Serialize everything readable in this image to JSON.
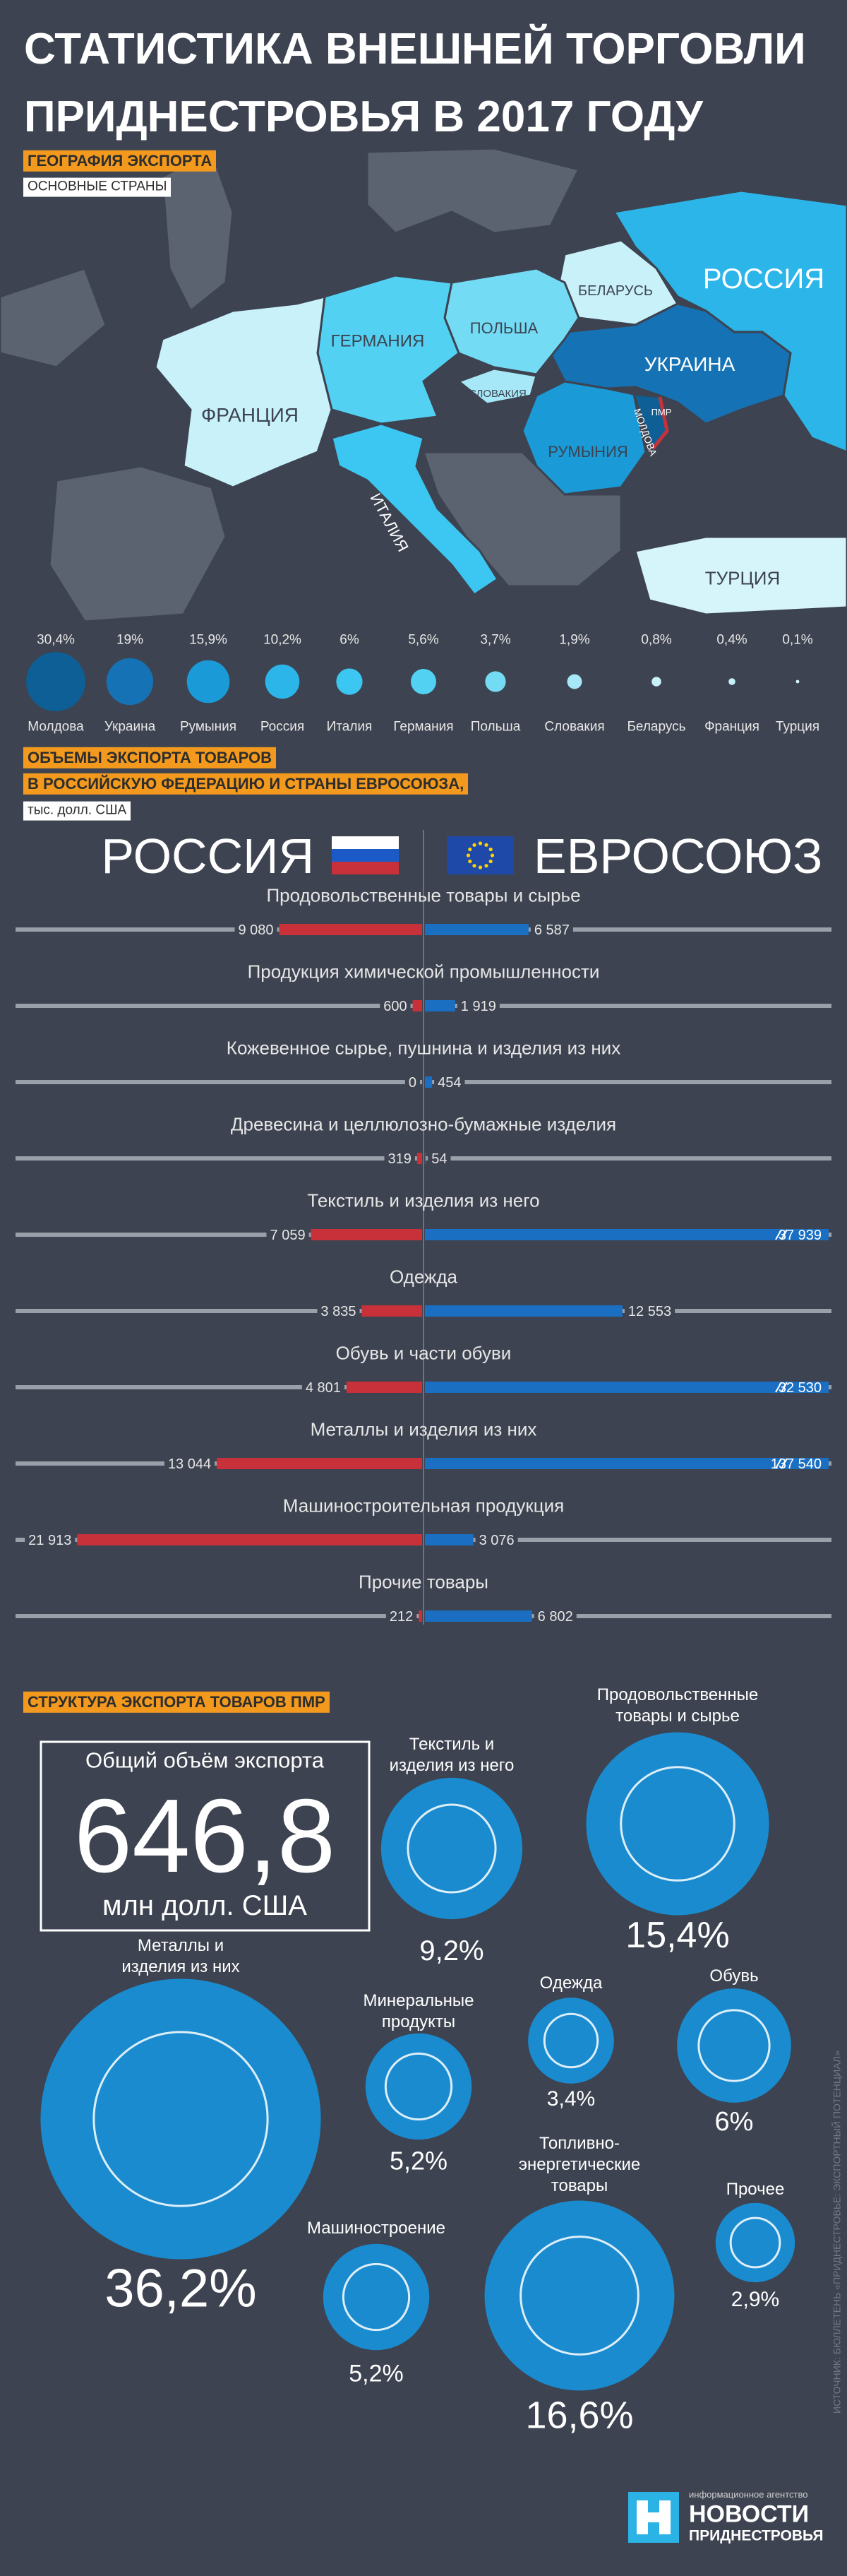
{
  "title": "СТАТИСТИКА ВНЕШНЕЙ ТОРГОВЛИ\nПРИДНЕСТРОВЬЯ В 2017 ГОДУ",
  "map": {
    "labels": [
      "РОССИЯ",
      "БЕЛАРУСЬ",
      "ГЕРМАНИЯ",
      "ПОЛЬША",
      "ФРАНЦИЯ",
      "СЛОВАКИЯ",
      "УКРАИНА",
      "ПМР",
      "МОЛДОВА",
      "РУМЫНИЯ",
      "ИТАЛИЯ",
      "ТУРЦИЯ"
    ]
  },
  "chart_data": [
    {
      "type": "bubble",
      "title": "ГЕОГРАФИЯ ЭКСПОРТА",
      "subtitle": "ОСНОВНЫЕ СТРАНЫ",
      "categories": [
        "Молдова",
        "Украина",
        "Румыния",
        "Россия",
        "Италия",
        "Германия",
        "Польша",
        "Словакия",
        "Беларусь",
        "Франция",
        "Турция"
      ],
      "values": [
        30.4,
        19,
        15.9,
        10.2,
        6,
        5.6,
        3.7,
        1.9,
        0.8,
        0.4,
        0.1
      ],
      "value_labels": [
        "30,4%",
        "19%",
        "15,9%",
        "10,2%",
        "6%",
        "5,6%",
        "3,7%",
        "1,9%",
        "0,8%",
        "0,4%",
        "0,1%"
      ],
      "colors": [
        "#0d5f96",
        "#1572b4",
        "#1a9ad6",
        "#2cb5e8",
        "#3cc6f2",
        "#52d1f2",
        "#74dbf4",
        "#a6e8f7",
        "#c8f1fa",
        "#c8f1fa",
        "#d6f5fb"
      ]
    },
    {
      "type": "butterfly",
      "title": "ОБЪЕМЫ ЭКСПОРТА ТОВАРОВ",
      "subtitle": "В РОССИЙСКУЮ ФЕДЕРАЦИЮ И СТРАНЫ ЕВРОСОЮЗА,",
      "unit": "тыс. долл. США",
      "categories": [
        "Продовольственные товары и сырье",
        "Продукция химической промышленности",
        "Кожевенное сырье, пушнина и изделия из них",
        "Древесина и целлюлозно-бумажные изделия",
        "Текстиль и изделия из него",
        "Одежда",
        "Обувь и части обуви",
        "Металлы и изделия из них",
        "Машиностроительная продукция",
        "Прочие товары"
      ],
      "series": [
        {
          "name": "РОССИЯ",
          "color": "#c8313a",
          "values": [
            9080,
            600,
            0,
            319,
            7059,
            3835,
            4801,
            13044,
            21913,
            212
          ],
          "value_labels": [
            "9 080",
            "600",
            "0",
            "319",
            "7 059",
            "3 835",
            "4 801",
            "13 044",
            "21 913",
            "212"
          ]
        },
        {
          "name": "ЕВРОСОЮЗ",
          "color": "#1b6fc2",
          "values": [
            6587,
            1919,
            454,
            54,
            37939,
            12553,
            32530,
            137540,
            3076,
            6802
          ],
          "value_labels": [
            "6 587",
            "1 919",
            "454",
            "54",
            "37 939",
            "12 553",
            "32 530",
            "137 540",
            "3 076",
            "6 802"
          ]
        }
      ]
    },
    {
      "type": "bubble",
      "title": "СТРУКТУРА ЭКСПОРТА ТОВАРОВ ПМР",
      "color": "#1a8bcf",
      "categories": [
        "Продовольственные\nтовары и сырье",
        "Текстиль и\nизделия из него",
        "Металлы и\nизделия из них",
        "Минеральные\nпродукты",
        "Одежда",
        "Обувь",
        "Машиностроение",
        "Топливно-\nэнергетические\nтовары",
        "Прочее"
      ],
      "values": [
        15.4,
        9.2,
        36.2,
        5.2,
        3.4,
        6,
        5.2,
        16.6,
        2.9
      ],
      "value_labels": [
        "15,4%",
        "9,2%",
        "36,2%",
        "5,2%",
        "3,4%",
        "6%",
        "5,2%",
        "16,6%",
        "2,9%"
      ]
    }
  ],
  "total": {
    "label": "Общий объём экспорта",
    "value": "646,8",
    "unit": "млн долл. США"
  },
  "source": "ИСТОЧНИК: БЮЛЛЕТЕНЬ «ПРИДНЕСТРОВЬЕ: ЭКСПОРТНЫЙ ПОТЕНЦИАЛ»",
  "logo": {
    "tagline": "информационное агентство",
    "name": "НОВОСТИ",
    "name2": "ПРИДНЕСТРОВЬЯ"
  }
}
